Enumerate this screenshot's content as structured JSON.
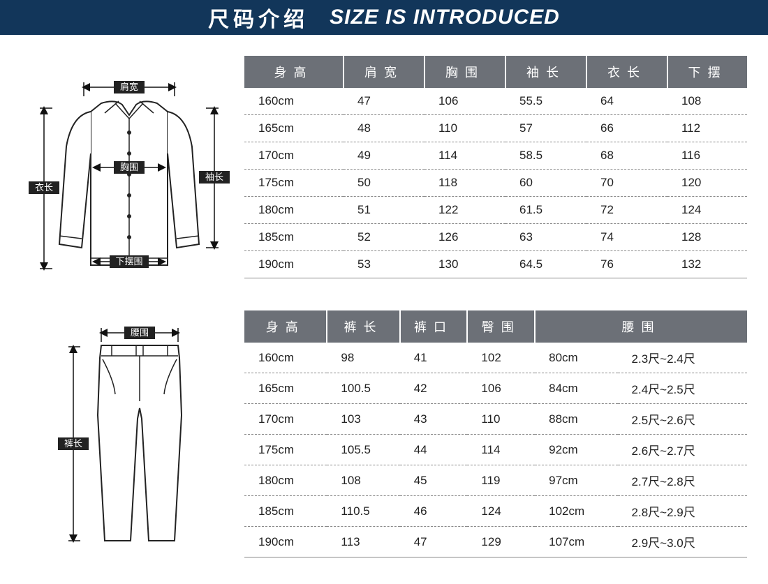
{
  "banner": {
    "title_cn": "尺码介绍",
    "title_en": "SIZE IS INTRODUCED",
    "bg_color": "#12365a",
    "text_color": "#ffffff"
  },
  "jacket_diagram": {
    "labels": {
      "shoulder": "肩宽",
      "chest": "胸围",
      "body_length": "衣长",
      "sleeve": "袖长",
      "hem": "下摆围"
    }
  },
  "jacket_table": {
    "header_bg": "#6c7077",
    "header_text_color": "#ffffff",
    "columns": [
      "身高",
      "肩宽",
      "胸围",
      "袖长",
      "衣长",
      "下摆"
    ],
    "rows": [
      [
        "160cm",
        "47",
        "106",
        "55.5",
        "64",
        "108"
      ],
      [
        "165cm",
        "48",
        "110",
        "57",
        "66",
        "112"
      ],
      [
        "170cm",
        "49",
        "114",
        "58.5",
        "68",
        "116"
      ],
      [
        "175cm",
        "50",
        "118",
        "60",
        "70",
        "120"
      ],
      [
        "180cm",
        "51",
        "122",
        "61.5",
        "72",
        "124"
      ],
      [
        "185cm",
        "52",
        "126",
        "63",
        "74",
        "128"
      ],
      [
        "190cm",
        "53",
        "130",
        "64.5",
        "76",
        "132"
      ]
    ]
  },
  "pants_diagram": {
    "labels": {
      "waist": "腰围",
      "pants_length": "裤长"
    }
  },
  "pants_table": {
    "header_bg": "#6c7077",
    "header_text_color": "#ffffff",
    "columns": [
      "身高",
      "裤长",
      "裤口",
      "臀围",
      "腰围",
      ""
    ],
    "rows": [
      [
        "160cm",
        "98",
        "41",
        "102",
        "80cm",
        "2.3尺~2.4尺"
      ],
      [
        "165cm",
        "100.5",
        "42",
        "106",
        "84cm",
        "2.4尺~2.5尺"
      ],
      [
        "170cm",
        "103",
        "43",
        "110",
        "88cm",
        "2.5尺~2.6尺"
      ],
      [
        "175cm",
        "105.5",
        "44",
        "114",
        "92cm",
        "2.6尺~2.7尺"
      ],
      [
        "180cm",
        "108",
        "45",
        "119",
        "97cm",
        "2.7尺~2.8尺"
      ],
      [
        "185cm",
        "110.5",
        "46",
        "124",
        "102cm",
        "2.8尺~2.9尺"
      ],
      [
        "190cm",
        "113",
        "47",
        "129",
        "107cm",
        "2.9尺~3.0尺"
      ]
    ]
  }
}
